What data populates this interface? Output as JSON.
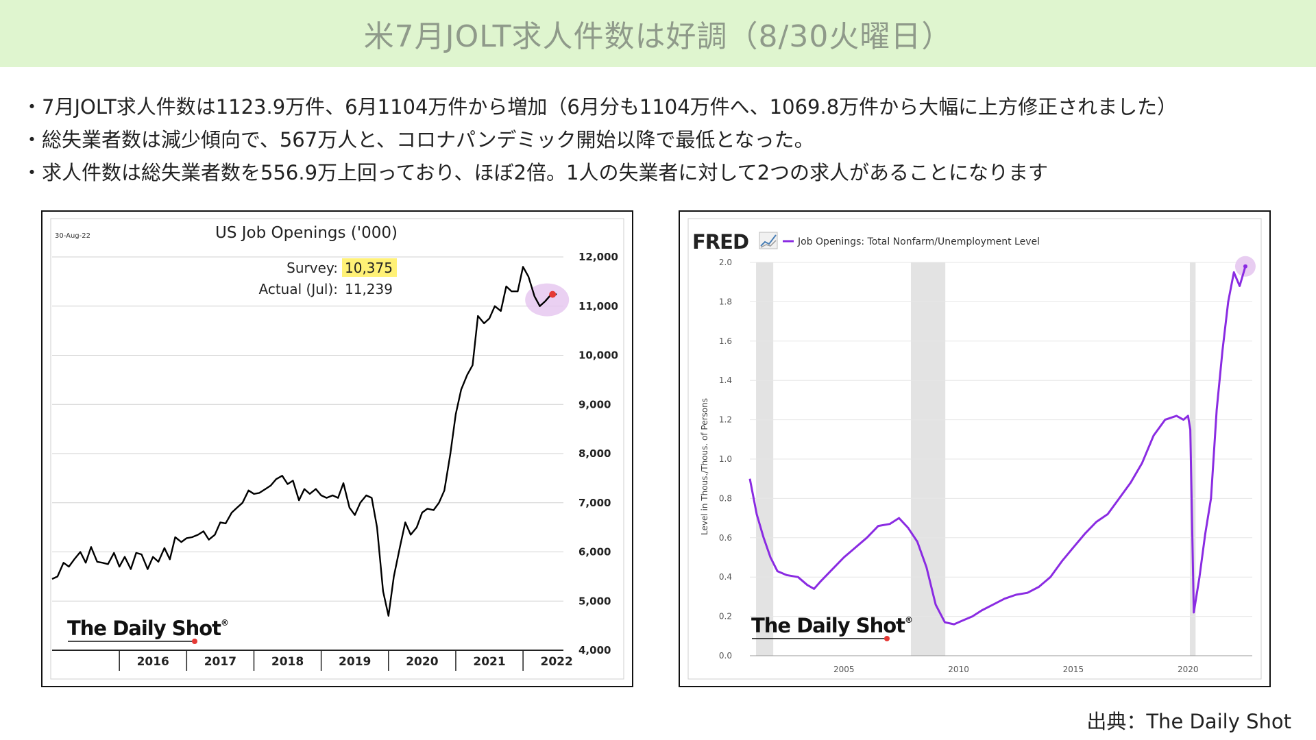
{
  "page": {
    "title": "米7月JOLT求人件数は好調（8/30火曜日）",
    "bullets": [
      "・7月JOLT求人件数は1123.9万件、6月1104万件から増加（6月分も1104万件へ、1069.8万件から大幅に上方修正されました）",
      "・総失業者数は減少傾向で、567万人と、コロナパンデミック開始以降で最低となった。",
      "・求人件数は総失業者数を556.9万上回っており、ほぼ2倍。1人の失業者に対して2つの求人があることになります"
    ],
    "source": "出典：The Daily Shot"
  },
  "left_chart": {
    "date_stamp": "30-Aug-22",
    "survey_label": "Survey:",
    "survey_value": "10,375",
    "actual_label": "Actual (Jul):",
    "actual_value": "11,239",
    "logo": "The Daily Shot",
    "logo_mark": "®",
    "highlight_color": "#fff176",
    "line_color": "#000000",
    "marker_color": "#e53935",
    "circle_color": "#e6c8f0"
  },
  "right_chart": {
    "brand": "FRED",
    "brand_icon": "fred-chart-icon",
    "logo": "The Daily Shot",
    "logo_mark": "®",
    "line_color": "#8a2be2",
    "recession_color": "#e3e3e3",
    "circle_color": "#e6c8f0"
  },
  "chart_data": [
    {
      "type": "line",
      "title": "US Job Openings ('000)",
      "xlabel": "",
      "ylabel": "",
      "x_ticks": [
        "2016",
        "2017",
        "2018",
        "2019",
        "2020",
        "2021",
        "2022"
      ],
      "y_ticks": [
        "4,000",
        "5,000",
        "6,000",
        "7,000",
        "8,000",
        "9,000",
        "10,000",
        "11,000",
        "12,000"
      ],
      "ylim": [
        4000,
        12000
      ],
      "xlim": [
        2015.0,
        2022.6
      ],
      "grid": "horizontal",
      "y_axis_side": "right",
      "series": [
        {
          "x": [
            2015.0,
            2015.08,
            2015.17,
            2015.25,
            2015.33,
            2015.42,
            2015.5,
            2015.58,
            2015.67,
            2015.75,
            2015.83,
            2015.92,
            2016.0,
            2016.08,
            2016.17,
            2016.25,
            2016.33,
            2016.42,
            2016.5,
            2016.58,
            2016.67,
            2016.75,
            2016.83,
            2016.92,
            2017.0,
            2017.08,
            2017.17,
            2017.25,
            2017.33,
            2017.42,
            2017.5,
            2017.58,
            2017.67,
            2017.75,
            2017.83,
            2017.92,
            2018.0,
            2018.08,
            2018.17,
            2018.25,
            2018.33,
            2018.42,
            2018.5,
            2018.58,
            2018.67,
            2018.75,
            2018.83,
            2018.92,
            2019.0,
            2019.08,
            2019.17,
            2019.25,
            2019.33,
            2019.42,
            2019.5,
            2019.58,
            2019.67,
            2019.75,
            2019.83,
            2019.92,
            2020.0,
            2020.08,
            2020.17,
            2020.25,
            2020.33,
            2020.42,
            2020.5,
            2020.58,
            2020.67,
            2020.75,
            2020.83,
            2020.92,
            2021.0,
            2021.08,
            2021.17,
            2021.25,
            2021.33,
            2021.42,
            2021.5,
            2021.58,
            2021.67,
            2021.75,
            2021.83,
            2021.92,
            2022.0,
            2022.08,
            2022.17,
            2022.25,
            2022.33,
            2022.42,
            2022.5
          ],
          "y": [
            5450,
            5500,
            5780,
            5700,
            5850,
            6000,
            5780,
            6100,
            5800,
            5780,
            5750,
            5980,
            5700,
            5900,
            5650,
            5980,
            5950,
            5650,
            5900,
            5800,
            6080,
            5850,
            6300,
            6200,
            6280,
            6300,
            6350,
            6420,
            6250,
            6350,
            6600,
            6580,
            6800,
            6900,
            7000,
            7250,
            7180,
            7200,
            7280,
            7350,
            7480,
            7550,
            7380,
            7450,
            7050,
            7280,
            7180,
            7280,
            7150,
            7100,
            7150,
            7100,
            7400,
            6900,
            6750,
            7000,
            7150,
            7100,
            6500,
            5200,
            4700,
            5500,
            6100,
            6600,
            6350,
            6500,
            6800,
            6880,
            6850,
            7000,
            7250,
            8000,
            8800,
            9300,
            9600,
            9800,
            10800,
            10650,
            10750,
            11000,
            10900,
            11400,
            11300,
            11300,
            11800,
            11600,
            11200,
            11000,
            11100,
            11239,
            11239
          ]
        }
      ]
    },
    {
      "type": "line",
      "title": "Job Openings: Total Nonfarm/Unemployment Level",
      "xlabel": "",
      "ylabel": "Level in Thous./Thous. of Persons",
      "x_ticks": [
        "2005",
        "2010",
        "2015",
        "2020"
      ],
      "y_ticks": [
        "0.0",
        "0.2",
        "0.4",
        "0.6",
        "0.8",
        "1.0",
        "1.2",
        "1.4",
        "1.6",
        "1.8",
        "2.0"
      ],
      "ylim": [
        0,
        2.0
      ],
      "xlim": [
        2000.9,
        2022.8
      ],
      "recessions": [
        [
          2001.17,
          2001.92
        ],
        [
          2007.92,
          2009.42
        ],
        [
          2020.08,
          2020.33
        ]
      ],
      "legend": "top-left",
      "series": [
        {
          "name": "Job Openings: Total Nonfarm/Unemployment Level",
          "x": [
            2000.9,
            2001.2,
            2001.5,
            2001.8,
            2002.1,
            2002.5,
            2003.0,
            2003.4,
            2003.7,
            2004.0,
            2004.5,
            2005.0,
            2005.5,
            2006.0,
            2006.5,
            2007.0,
            2007.4,
            2007.8,
            2008.2,
            2008.6,
            2009.0,
            2009.4,
            2009.8,
            2010.2,
            2010.6,
            2011.0,
            2011.5,
            2012.0,
            2012.5,
            2013.0,
            2013.5,
            2014.0,
            2014.5,
            2015.0,
            2015.5,
            2016.0,
            2016.5,
            2017.0,
            2017.5,
            2018.0,
            2018.5,
            2019.0,
            2019.5,
            2019.8,
            2020.0,
            2020.1,
            2020.25,
            2020.5,
            2020.75,
            2021.0,
            2021.25,
            2021.5,
            2021.75,
            2022.0,
            2022.25,
            2022.5
          ],
          "y": [
            0.9,
            0.72,
            0.6,
            0.5,
            0.43,
            0.41,
            0.4,
            0.36,
            0.34,
            0.38,
            0.44,
            0.5,
            0.55,
            0.6,
            0.66,
            0.67,
            0.7,
            0.65,
            0.58,
            0.45,
            0.26,
            0.17,
            0.16,
            0.18,
            0.2,
            0.23,
            0.26,
            0.29,
            0.31,
            0.32,
            0.35,
            0.4,
            0.48,
            0.55,
            0.62,
            0.68,
            0.72,
            0.8,
            0.88,
            0.98,
            1.12,
            1.2,
            1.22,
            1.2,
            1.22,
            1.15,
            0.22,
            0.4,
            0.62,
            0.8,
            1.25,
            1.55,
            1.8,
            1.95,
            1.88,
            1.98
          ]
        }
      ]
    }
  ]
}
